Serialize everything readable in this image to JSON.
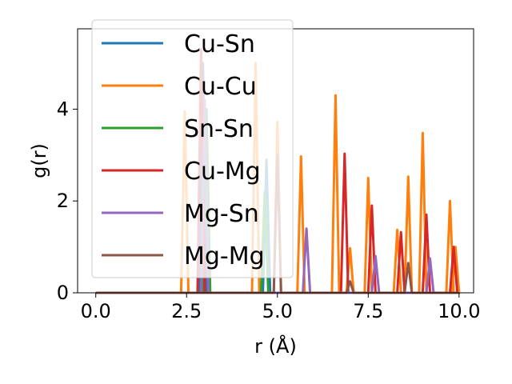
{
  "chart_data": {
    "type": "line",
    "title": "",
    "xlabel": "r (Å)",
    "ylabel": "g(r)",
    "xlim": [
      -0.5,
      10.4
    ],
    "ylim": [
      0,
      5.75
    ],
    "xticks": [
      0.0,
      2.5,
      5.0,
      7.5,
      10.0
    ],
    "xtick_labels": [
      "0.0",
      "2.5",
      "5.0",
      "7.5",
      "10.0"
    ],
    "yticks": [
      0,
      2,
      4
    ],
    "ytick_labels": [
      "0",
      "2",
      "4"
    ],
    "grid": false,
    "legend_position": "top-left",
    "series": [
      {
        "name": "Cu-Sn",
        "color": "#1f77b4",
        "peaks": [
          [
            2.95,
            5.0
          ],
          [
            4.7,
            2.9
          ]
        ]
      },
      {
        "name": "Cu-Cu",
        "color": "#ff7f0e",
        "peaks": [
          [
            2.45,
            3.95
          ],
          [
            4.4,
            5.0
          ],
          [
            5.0,
            3.72
          ],
          [
            5.65,
            2.97
          ],
          [
            6.6,
            4.3
          ],
          [
            7.0,
            0.97
          ],
          [
            7.5,
            2.5
          ],
          [
            8.3,
            1.37
          ],
          [
            8.6,
            2.53
          ],
          [
            9.0,
            3.48
          ],
          [
            9.75,
            2.0
          ],
          [
            9.9,
            1.0
          ]
        ]
      },
      {
        "name": "Sn-Sn",
        "color": "#2ca02c",
        "peaks": [
          [
            3.05,
            4.0
          ],
          [
            4.65,
            2.2
          ]
        ]
      },
      {
        "name": "Cu-Mg",
        "color": "#d62728",
        "peaks": [
          [
            2.9,
            5.3
          ],
          [
            6.85,
            3.03
          ],
          [
            7.6,
            1.9
          ],
          [
            8.4,
            1.32
          ],
          [
            9.1,
            1.7
          ],
          [
            9.85,
            1.0
          ]
        ]
      },
      {
        "name": "Mg-Sn",
        "color": "#9467bd",
        "peaks": [
          [
            3.0,
            4.2
          ],
          [
            5.8,
            1.4
          ],
          [
            7.7,
            0.8
          ],
          [
            9.2,
            0.75
          ]
        ]
      },
      {
        "name": "Mg-Mg",
        "color": "#8c564b",
        "peaks": [
          [
            5.0,
            3.0
          ],
          [
            7.0,
            0.25
          ],
          [
            8.6,
            0.65
          ]
        ]
      }
    ]
  }
}
